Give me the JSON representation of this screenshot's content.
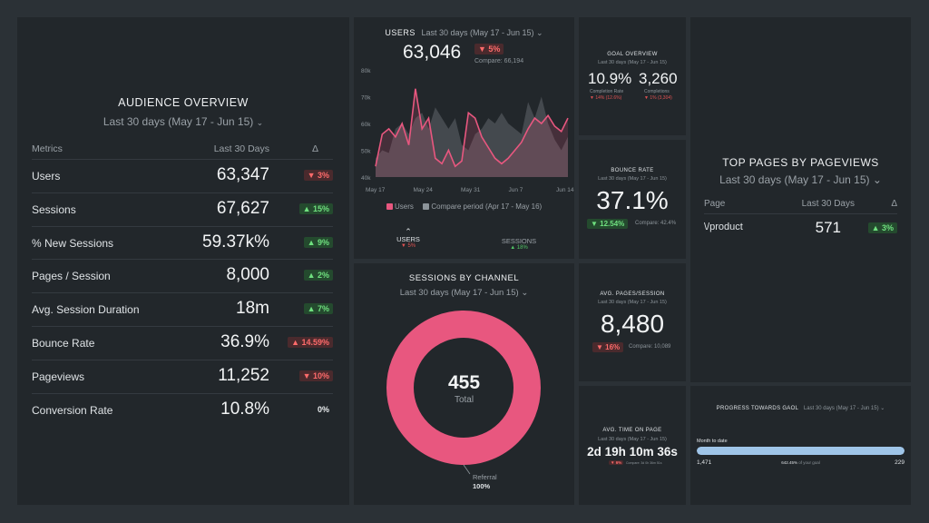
{
  "audience": {
    "title": "AUDIENCE OVERVIEW",
    "period": "Last 30 days (May 17 - Jun 15)",
    "head_metrics": "Metrics",
    "head_period": "Last 30 Days",
    "head_delta": "Δ",
    "rows": [
      {
        "label": "Users",
        "value": "63,347",
        "delta": "▼ 3%",
        "dir": "down"
      },
      {
        "label": "Sessions",
        "value": "67,627",
        "delta": "▲ 15%",
        "dir": "up"
      },
      {
        "label": "% New Sessions",
        "value": "59.37k%",
        "delta": "▲ 9%",
        "dir": "up"
      },
      {
        "label": "Pages / Session",
        "value": "8,000",
        "delta": "▲ 2%",
        "dir": "up"
      },
      {
        "label": "Avg. Session Duration",
        "value": "18m",
        "delta": "▲ 7%",
        "dir": "up"
      },
      {
        "label": "Bounce Rate",
        "value": "36.9%",
        "delta": "▲ 14.59%",
        "dir": "down"
      },
      {
        "label": "Pageviews",
        "value": "11,252",
        "delta": "▼ 10%",
        "dir": "down"
      },
      {
        "label": "Conversion Rate",
        "value": "10.8%",
        "delta": "0%",
        "dir": "neutral"
      }
    ]
  },
  "users": {
    "title": "USERS",
    "period": "Last 30 days (May 17 - Jun 15)",
    "value": "63,046",
    "delta": "▼ 5%",
    "compare": "Compare: 66,194",
    "legend_users": "Users",
    "legend_compare": "Compare period (Apr 17 - May 16)",
    "tab_users": "USERS",
    "tab_users_delta": "▼ 5%",
    "tab_sessions": "SESSIONS",
    "tab_sessions_delta": "▲ 18%"
  },
  "chart_data": {
    "type": "area",
    "title": "",
    "x_ticks": [
      "May 17",
      "May 24",
      "May 31",
      "Jun 7",
      "Jun 14"
    ],
    "y_ticks": [
      "80k",
      "70k",
      "60k",
      "50k",
      "40k"
    ],
    "ylim": [
      40000,
      80000
    ],
    "series": [
      {
        "name": "Users",
        "values": [
          44000,
          56000,
          58000,
          55000,
          60000,
          52000,
          73000,
          58000,
          62000,
          47000,
          45000,
          50000,
          44000,
          46000,
          64000,
          62000,
          55000,
          51000,
          47000,
          45000,
          47000,
          50000,
          53000,
          58000,
          62000,
          60000,
          63000,
          59000,
          57000,
          62000
        ]
      },
      {
        "name": "Compare period (Apr 17 - May 16)",
        "values": [
          47000,
          50000,
          49000,
          58000,
          60000,
          56000,
          62000,
          64000,
          58000,
          66000,
          62000,
          58000,
          62000,
          52000,
          50000,
          56000,
          58000,
          62000,
          60000,
          64000,
          60000,
          58000,
          56000,
          68000,
          62000,
          70000,
          60000,
          54000,
          50000,
          55000
        ]
      }
    ]
  },
  "channel": {
    "title": "SESSIONS BY CHANNEL",
    "period": "Last 30 days (May 17 - Jun 15)",
    "total": "455",
    "total_label": "Total",
    "slice_label": "Referral",
    "slice_pct": "100%",
    "color": "#e8577f"
  },
  "goal": {
    "title": "GOAL OVERVIEW",
    "period": "Last 30 days (May 17 - Jun 15)",
    "rate": "10.9%",
    "rate_label": "Completion Rate",
    "rate_delta": "▼ 14% (12.6%)",
    "completions": "3,260",
    "completions_label": "Completions",
    "completions_delta": "▼ 1% (3,304)"
  },
  "bounce": {
    "title": "BOUNCE RATE",
    "period": "Last 30 days (May 17 - Jun 15)",
    "value": "37.1%",
    "delta": "▼ 12.54%",
    "compare": "Compare: 42.4%"
  },
  "pages": {
    "title": "AVG. PAGES/SESSION",
    "period": "Last 30 days (May 17 - Jun 15)",
    "value": "8,480",
    "delta": "▼ 16%",
    "compare": "Compare: 10,089"
  },
  "time": {
    "title": "AVG. TIME ON PAGE",
    "period": "Last 30 days (May 17 - Jun 15)",
    "value": "2d 19h 10m 36s",
    "delta": "▼ 6%",
    "compare": "Compare: 3d 0h 36m 51s"
  },
  "toppages": {
    "title": "TOP PAGES BY PAGEVIEWS",
    "period": "Last 30 days (May 17 - Jun 15)",
    "head_page": "Page",
    "head_period": "Last 30 Days",
    "head_delta": "Δ",
    "rows": [
      {
        "page": "\\/product",
        "value": "571",
        "delta": "▲ 3%"
      }
    ]
  },
  "progress": {
    "title": "PROGRESS TOWARDS GAOL",
    "period": "Last 30 days (May 17 - Jun 15)",
    "label": "Month to date",
    "current": "1,471",
    "goal": "229",
    "pct_text": "642.45%",
    "of_goal": "of your goal",
    "fraction": 1.0
  }
}
